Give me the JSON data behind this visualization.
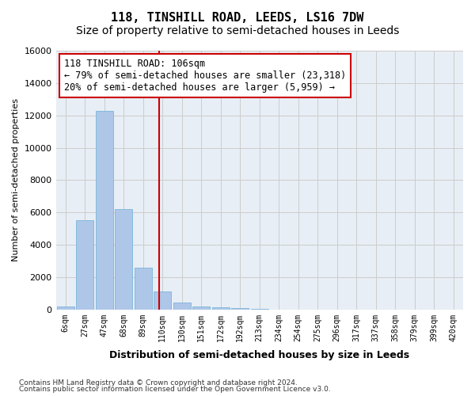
{
  "title1": "118, TINSHILL ROAD, LEEDS, LS16 7DW",
  "title2": "Size of property relative to semi-detached houses in Leeds",
  "xlabel": "Distribution of semi-detached houses by size in Leeds",
  "ylabel": "Number of semi-detached properties",
  "footnote1": "Contains HM Land Registry data © Crown copyright and database right 2024.",
  "footnote2": "Contains public sector information licensed under the Open Government Licence v3.0.",
  "annotation_line1": "118 TINSHILL ROAD: 106sqm",
  "annotation_line2": "← 79% of semi-detached houses are smaller (23,318)",
  "annotation_line3": "20% of semi-detached houses are larger (5,959) →",
  "bin_labels": [
    "6sqm",
    "27sqm",
    "47sqm",
    "68sqm",
    "89sqm",
    "110sqm",
    "130sqm",
    "151sqm",
    "172sqm",
    "192sqm",
    "213sqm",
    "234sqm",
    "254sqm",
    "275sqm",
    "296sqm",
    "317sqm",
    "337sqm",
    "358sqm",
    "379sqm",
    "399sqm",
    "420sqm"
  ],
  "bar_heights": [
    200,
    5500,
    12300,
    6200,
    2600,
    1100,
    450,
    200,
    120,
    80,
    30,
    0,
    0,
    0,
    0,
    0,
    0,
    0,
    0,
    0,
    0
  ],
  "bar_color": "#aec6e8",
  "bar_edge_color": "#6baed6",
  "vline_x": 4.82,
  "vline_color": "#cc0000",
  "ylim": [
    0,
    16000
  ],
  "yticks": [
    0,
    2000,
    4000,
    6000,
    8000,
    10000,
    12000,
    14000,
    16000
  ],
  "grid_color": "#cccccc",
  "background_color": "#e8eef5",
  "title_fontsize": 11,
  "subtitle_fontsize": 10,
  "annotation_fontsize": 8.5
}
